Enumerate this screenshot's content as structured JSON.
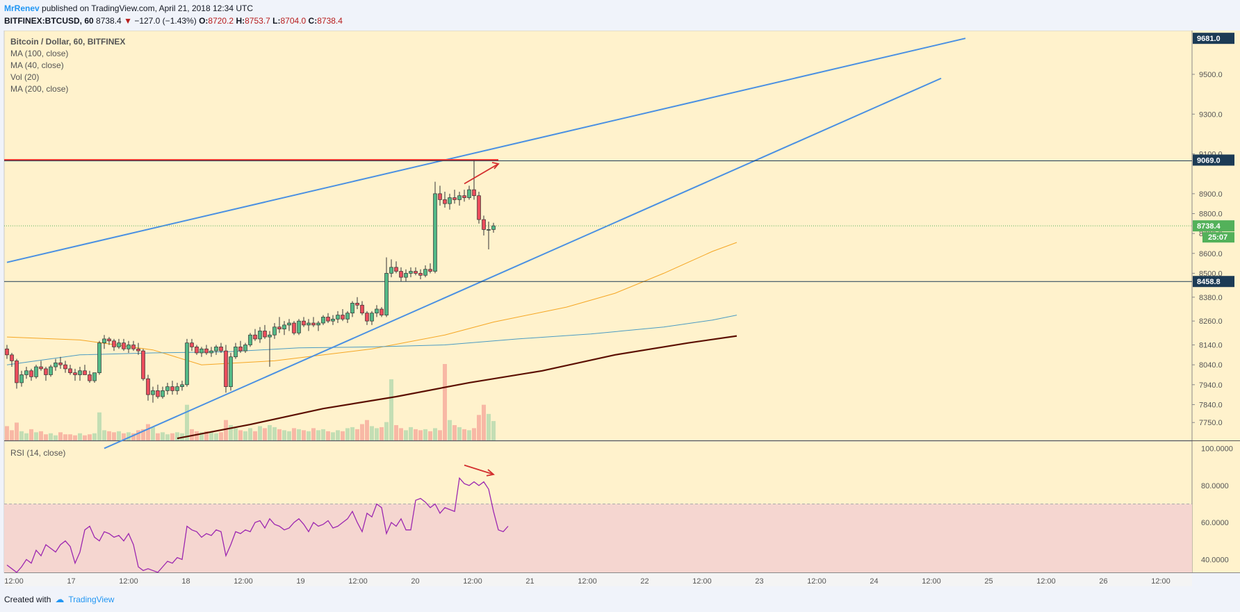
{
  "header": {
    "author": "MrRenev",
    "published_text": "published on TradingView.com, April 21, 2018 12:34 UTC",
    "symbol": "BITFINEX:BTCUSD, 60",
    "last": "8738.4",
    "change_arrow": "▼",
    "change": "−127.0 (−1.43%)",
    "open_label": "O:",
    "open": "8720.2",
    "high_label": "H:",
    "high": "8753.7",
    "low_label": "L:",
    "low": "8704.0",
    "close_label": "C:",
    "close": "8738.4"
  },
  "legend": {
    "title": "Bitcoin / Dollar, 60, BITFINEX",
    "items": [
      "MA (100, close)",
      "MA (40, close)",
      "Vol (20)",
      "MA (200, close)"
    ],
    "rsi": "RSI (14, close)"
  },
  "footer": {
    "created_with": "Created with",
    "brand": "TradingView"
  },
  "colors": {
    "pane_bg": "#fff2cc",
    "up": "#53b987",
    "down": "#eb4d5c",
    "trendline": "#4a90e2",
    "resistance": "#e53935",
    "ma40": "#f5a623",
    "ma100": "#4a9bc2",
    "ma200": "#5c0f00",
    "rsi": "#9c27b0",
    "rsi_band": "#f5d6d0",
    "price_badge": "#1c3b55",
    "last_badge": "#53b15a"
  },
  "chart_data": [
    {
      "type": "candlestick",
      "title": "Bitcoin / Dollar, 60, BITFINEX",
      "ylim": [
        7660,
        9720
      ],
      "y_ticks": [
        7750,
        7840,
        7940,
        8040,
        8140,
        8260,
        8380,
        8500,
        8600,
        8700,
        8800,
        8900,
        9100,
        9300,
        9500
      ],
      "x_ticks": [
        "12:00",
        "17",
        "12:00",
        "18",
        "12:00",
        "19",
        "12:00",
        "20",
        "12:00",
        "21",
        "12:00",
        "22",
        "12:00",
        "23",
        "12:00",
        "24",
        "12:00",
        "25",
        "12:00",
        "26",
        "12:00"
      ],
      "price_badges": [
        {
          "value": 9681.0,
          "label": "9681.0",
          "kind": "level"
        },
        {
          "value": 9069.0,
          "label": "9069.0",
          "kind": "level"
        },
        {
          "value": 8738.4,
          "label": "8738.4",
          "kind": "last",
          "countdown": "25:07"
        },
        {
          "value": 8458.8,
          "label": "8458.8",
          "kind": "level"
        }
      ],
      "horizontal_lines": [
        {
          "name": "resistance",
          "value": 9069.0,
          "color": "#e53935"
        },
        {
          "name": "level-upper",
          "value": 9069.0,
          "color": "#1c3b55"
        },
        {
          "name": "level-lower",
          "value": 8458.8,
          "color": "#1c3b55"
        }
      ],
      "trendlines": [
        {
          "name": "upper-channel",
          "from": [
            0,
            8555
          ],
          "to": [
            197,
            9681
          ]
        },
        {
          "name": "lower-channel",
          "from": [
            20,
            7620
          ],
          "to": [
            192,
            9480
          ]
        }
      ],
      "moving_averages": [
        {
          "name": "MA (40, close)",
          "color": "#f5a623",
          "points": [
            [
              0,
              8180
            ],
            [
              15,
              8165
            ],
            [
              30,
              8115
            ],
            [
              40,
              8040
            ],
            [
              55,
              8060
            ],
            [
              75,
              8120
            ],
            [
              90,
              8190
            ],
            [
              100,
              8255
            ],
            [
              115,
              8330
            ],
            [
              125,
              8400
            ],
            [
              135,
              8500
            ],
            [
              145,
              8610
            ],
            [
              150,
              8655
            ]
          ]
        },
        {
          "name": "MA (100, close)",
          "color": "#4a9bc2",
          "points": [
            [
              0,
              8040
            ],
            [
              15,
              8090
            ],
            [
              30,
              8100
            ],
            [
              45,
              8105
            ],
            [
              60,
              8125
            ],
            [
              75,
              8130
            ],
            [
              90,
              8140
            ],
            [
              105,
              8170
            ],
            [
              120,
              8195
            ],
            [
              135,
              8230
            ],
            [
              145,
              8265
            ],
            [
              150,
              8290
            ]
          ]
        },
        {
          "name": "MA (200, close)",
          "color": "#5c0f00",
          "points": [
            [
              35,
              7670
            ],
            [
              50,
              7740
            ],
            [
              65,
              7820
            ],
            [
              80,
              7880
            ],
            [
              95,
              7950
            ],
            [
              110,
              8010
            ],
            [
              125,
              8090
            ],
            [
              140,
              8150
            ],
            [
              150,
              8185
            ]
          ]
        }
      ],
      "ohlc_series": [
        [
          8120,
          8140,
          8070,
          8090
        ],
        [
          8090,
          8100,
          8030,
          8060
        ],
        [
          8060,
          8070,
          7920,
          7950
        ],
        [
          7950,
          8010,
          7930,
          7990
        ],
        [
          7990,
          8030,
          7970,
          8010
        ],
        [
          8010,
          8020,
          7960,
          7980
        ],
        [
          7980,
          8040,
          7970,
          8030
        ],
        [
          8030,
          8060,
          8010,
          8020
        ],
        [
          8020,
          8030,
          7960,
          7990
        ],
        [
          7990,
          8040,
          7980,
          8030
        ],
        [
          8030,
          8070,
          8010,
          8050
        ],
        [
          8050,
          8080,
          8020,
          8040
        ],
        [
          8040,
          8060,
          8000,
          8020
        ],
        [
          8020,
          8040,
          7990,
          8000
        ],
        [
          8000,
          8020,
          7960,
          7990
        ],
        [
          7990,
          8030,
          7960,
          8010
        ],
        [
          8010,
          8040,
          7990,
          7990
        ],
        [
          7990,
          8010,
          7950,
          7960
        ],
        [
          7960,
          8000,
          7950,
          8000
        ],
        [
          8000,
          8160,
          7990,
          8150
        ],
        [
          8150,
          8190,
          8120,
          8170
        ],
        [
          8170,
          8180,
          8140,
          8160
        ],
        [
          8160,
          8170,
          8110,
          8130
        ],
        [
          8130,
          8170,
          8120,
          8150
        ],
        [
          8150,
          8170,
          8110,
          8120
        ],
        [
          8120,
          8160,
          8100,
          8140
        ],
        [
          8140,
          8160,
          8110,
          8120
        ],
        [
          8120,
          8150,
          8090,
          8110
        ],
        [
          8110,
          8120,
          7960,
          7970
        ],
        [
          7970,
          7990,
          7860,
          7890
        ],
        [
          7890,
          7930,
          7850,
          7910
        ],
        [
          7910,
          7940,
          7870,
          7880
        ],
        [
          7880,
          7930,
          7870,
          7910
        ],
        [
          7910,
          7950,
          7890,
          7930
        ],
        [
          7930,
          7960,
          7890,
          7910
        ],
        [
          7910,
          7950,
          7890,
          7930
        ],
        [
          7930,
          7960,
          7910,
          7940
        ],
        [
          7940,
          8170,
          7930,
          8150
        ],
        [
          8150,
          8170,
          8110,
          8130
        ],
        [
          8130,
          8140,
          8090,
          8100
        ],
        [
          8100,
          8130,
          8080,
          8120
        ],
        [
          8120,
          8140,
          8090,
          8100
        ],
        [
          8100,
          8130,
          8080,
          8110
        ],
        [
          8110,
          8140,
          8090,
          8130
        ],
        [
          8130,
          8150,
          8100,
          8110
        ],
        [
          8110,
          8140,
          7900,
          7930
        ],
        [
          7930,
          8100,
          7910,
          8080
        ],
        [
          8080,
          8150,
          8070,
          8130
        ],
        [
          8130,
          8160,
          8100,
          8110
        ],
        [
          8110,
          8150,
          8100,
          8140
        ],
        [
          8140,
          8200,
          8130,
          8190
        ],
        [
          8190,
          8220,
          8160,
          8170
        ],
        [
          8170,
          8230,
          8150,
          8210
        ],
        [
          8210,
          8240,
          8170,
          8180
        ],
        [
          8180,
          8210,
          8030,
          8190
        ],
        [
          8190,
          8250,
          8170,
          8230
        ],
        [
          8230,
          8280,
          8200,
          8220
        ],
        [
          8220,
          8260,
          8190,
          8240
        ],
        [
          8240,
          8270,
          8210,
          8250
        ],
        [
          8250,
          8260,
          8190,
          8200
        ],
        [
          8200,
          8270,
          8190,
          8260
        ],
        [
          8260,
          8280,
          8230,
          8240
        ],
        [
          8240,
          8270,
          8210,
          8250
        ],
        [
          8250,
          8280,
          8230,
          8240
        ],
        [
          8240,
          8260,
          8210,
          8250
        ],
        [
          8250,
          8290,
          8240,
          8280
        ],
        [
          8280,
          8300,
          8250,
          8260
        ],
        [
          8260,
          8290,
          8240,
          8270
        ],
        [
          8270,
          8310,
          8250,
          8290
        ],
        [
          8290,
          8320,
          8260,
          8270
        ],
        [
          8270,
          8310,
          8250,
          8300
        ],
        [
          8300,
          8360,
          8280,
          8350
        ],
        [
          8350,
          8380,
          8320,
          8340
        ],
        [
          8340,
          8360,
          8290,
          8300
        ],
        [
          8300,
          8310,
          8240,
          8260
        ],
        [
          8260,
          8310,
          8240,
          8300
        ],
        [
          8300,
          8340,
          8280,
          8320
        ],
        [
          8320,
          8330,
          8280,
          8290
        ],
        [
          8290,
          8580,
          8280,
          8500
        ],
        [
          8500,
          8570,
          8480,
          8530
        ],
        [
          8530,
          8560,
          8500,
          8510
        ],
        [
          8510,
          8530,
          8460,
          8480
        ],
        [
          8480,
          8520,
          8460,
          8500
        ],
        [
          8500,
          8530,
          8480,
          8510
        ],
        [
          8510,
          8530,
          8490,
          8500
        ],
        [
          8500,
          8520,
          8470,
          8490
        ],
        [
          8490,
          8540,
          8480,
          8520
        ],
        [
          8520,
          8550,
          8500,
          8510
        ],
        [
          8510,
          8960,
          8500,
          8900
        ],
        [
          8900,
          8940,
          8840,
          8870
        ],
        [
          8870,
          8910,
          8830,
          8850
        ],
        [
          8850,
          8900,
          8820,
          8880
        ],
        [
          8880,
          8920,
          8850,
          8870
        ],
        [
          8870,
          8910,
          8840,
          8890
        ],
        [
          8890,
          8920,
          8860,
          8880
        ],
        [
          8880,
          8940,
          8870,
          8920
        ],
        [
          8920,
          9069,
          8870,
          8890
        ],
        [
          8890,
          8910,
          8750,
          8770
        ],
        [
          8770,
          8790,
          8690,
          8720
        ],
        [
          8720,
          8760,
          8620,
          8720
        ],
        [
          8720,
          8753.7,
          8704,
          8738.4
        ]
      ],
      "volume": [
        28,
        20,
        35,
        18,
        14,
        22,
        16,
        18,
        12,
        14,
        10,
        16,
        12,
        12,
        10,
        14,
        10,
        12,
        14,
        55,
        20,
        18,
        16,
        18,
        14,
        16,
        14,
        20,
        22,
        32,
        26,
        14,
        16,
        12,
        14,
        16,
        14,
        70,
        22,
        18,
        16,
        18,
        16,
        14,
        16,
        40,
        30,
        24,
        20,
        18,
        24,
        18,
        28,
        24,
        30,
        26,
        22,
        20,
        18,
        24,
        22,
        20,
        18,
        24,
        20,
        22,
        18,
        16,
        20,
        18,
        24,
        26,
        22,
        32,
        40,
        28,
        24,
        26,
        36,
        120,
        30,
        24,
        20,
        26,
        22,
        20,
        22,
        18,
        24,
        20,
        150,
        40,
        30,
        26,
        22,
        20,
        24,
        50,
        70,
        52,
        38,
        34,
        28,
        12
      ]
    },
    {
      "type": "line",
      "title": "RSI (14, close)",
      "ylim": [
        33,
        104
      ],
      "y_ticks": [
        "40.0000",
        "60.0000",
        "80.0000",
        "100.0000"
      ],
      "band": [
        30,
        70
      ],
      "values": [
        37,
        35,
        33,
        36,
        40,
        38,
        45,
        42,
        48,
        46,
        44,
        48,
        50,
        47,
        38,
        44,
        56,
        58,
        52,
        50,
        55,
        54,
        52,
        53,
        50,
        54,
        48,
        36,
        34,
        35,
        34,
        33,
        36,
        39,
        38,
        41,
        40,
        58,
        56,
        55,
        52,
        54,
        53,
        56,
        55,
        42,
        48,
        55,
        54,
        56,
        55,
        60,
        61,
        57,
        62,
        59,
        58,
        56,
        57,
        60,
        62,
        59,
        55,
        60,
        58,
        59,
        61,
        57,
        58,
        60,
        62,
        66,
        60,
        55,
        65,
        63,
        70,
        68,
        54,
        60,
        58,
        62,
        56,
        56,
        72,
        73,
        71,
        68,
        70,
        65,
        68,
        67,
        66,
        84,
        81,
        80,
        82,
        80,
        82,
        78,
        66,
        56,
        55,
        58
      ]
    }
  ]
}
